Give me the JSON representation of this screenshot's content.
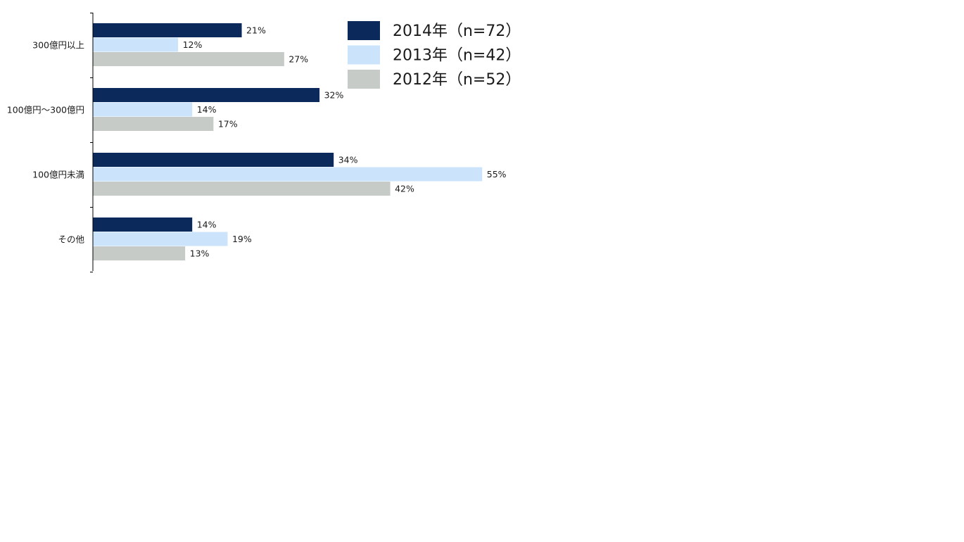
{
  "chart_data": {
    "type": "bar",
    "orientation": "horizontal",
    "categories": [
      "300億円以上",
      "100億円～300億円",
      "100億円未満",
      "その他"
    ],
    "series": [
      {
        "name": "2014年（n=72）",
        "color": "#0b2a5b",
        "values": [
          21,
          32,
          34,
          14
        ],
        "labels": [
          "21%",
          "32%",
          "34%",
          "14%"
        ]
      },
      {
        "name": "2013年（n=42）",
        "color": "#cce4fb",
        "values": [
          12,
          14,
          55,
          19
        ],
        "labels": [
          "12%",
          "14%",
          "55%",
          "19%"
        ]
      },
      {
        "name": "2012年（n=52）",
        "color": "#c6cbc7",
        "values": [
          27,
          17,
          42,
          13
        ],
        "labels": [
          "27%",
          "17%",
          "42%",
          "13%"
        ]
      }
    ],
    "xlim": [
      0,
      100
    ],
    "legend_position": "top-right",
    "grid": false,
    "title": "",
    "xlabel": "",
    "ylabel": ""
  }
}
